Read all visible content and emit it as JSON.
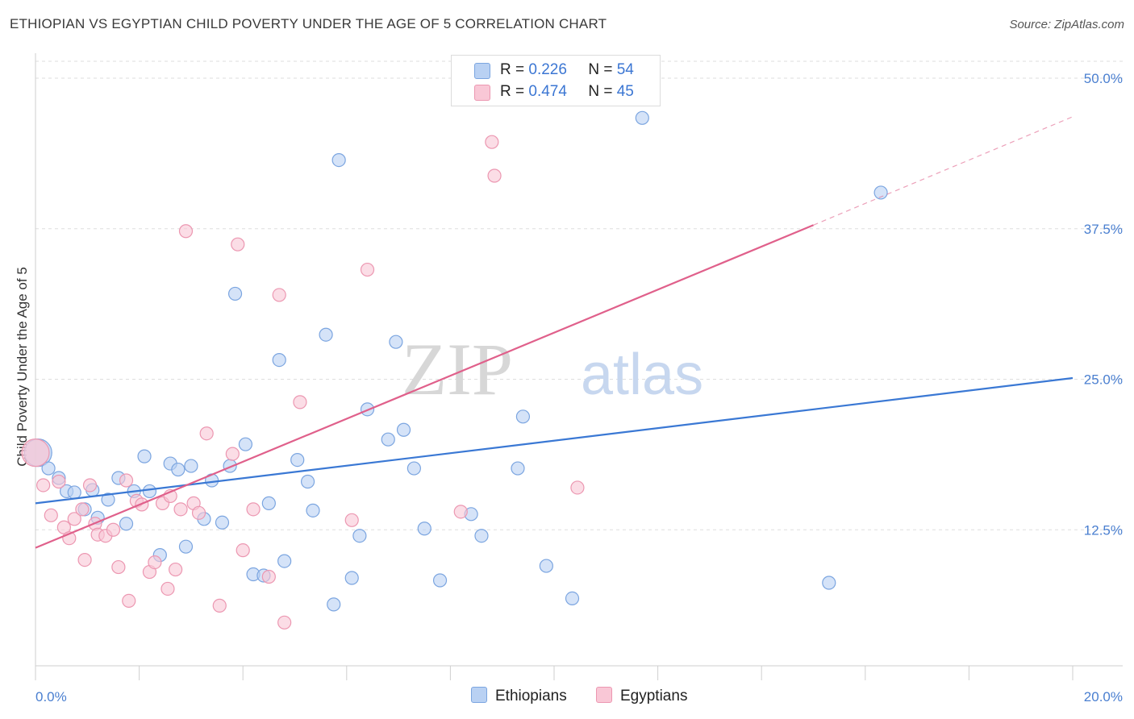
{
  "title": "ETHIOPIAN VS EGYPTIAN CHILD POVERTY UNDER THE AGE OF 5 CORRELATION CHART",
  "source": "Source: ZipAtlas.com",
  "watermark": {
    "zip": "ZIP",
    "atlas": "atlas"
  },
  "legend": {
    "r_label": "R =",
    "n_label": "N =",
    "rows": [
      {
        "r": "0.226",
        "n": "54",
        "fill": "#b9d1f3",
        "stroke": "#7ba5e0"
      },
      {
        "r": "0.474",
        "n": "45",
        "fill": "#f9c7d6",
        "stroke": "#ec97b1"
      }
    ]
  },
  "chart_data": {
    "type": "scatter",
    "title": "ETHIOPIAN VS EGYPTIAN CHILD POVERTY UNDER THE AGE OF 5 CORRELATION CHART",
    "xlabel": "",
    "ylabel": "Child Poverty Under the Age of 5",
    "xlim": [
      0,
      20
    ],
    "ylim": [
      0,
      52
    ],
    "x_tick_labels": [
      "0.0%",
      "20.0%"
    ],
    "y_ticks": [
      12.5,
      25.0,
      37.5,
      50.0
    ],
    "y_tick_labels": [
      "12.5%",
      "25.0%",
      "37.5%",
      "50.0%"
    ],
    "grid": true,
    "legend_position": "top-center",
    "series": [
      {
        "name": "Ethiopians",
        "color": "#3a78d4",
        "fill": "#b9d1f3",
        "stroke": "#7ba5e0",
        "r": 0.226,
        "n": 54,
        "trend": {
          "x0": 0,
          "y0": 14.7,
          "x1": 20,
          "y1": 25.1
        },
        "points": [
          [
            0.05,
            18.9
          ],
          [
            0.25,
            17.6
          ],
          [
            0.45,
            16.8
          ],
          [
            0.6,
            15.7
          ],
          [
            0.75,
            15.6
          ],
          [
            0.95,
            14.2
          ],
          [
            1.1,
            15.8
          ],
          [
            1.2,
            13.5
          ],
          [
            1.4,
            15.0
          ],
          [
            1.6,
            16.8
          ],
          [
            1.75,
            13.0
          ],
          [
            1.9,
            15.7
          ],
          [
            2.1,
            18.6
          ],
          [
            2.2,
            15.7
          ],
          [
            2.4,
            10.4
          ],
          [
            2.6,
            18.0
          ],
          [
            2.75,
            17.5
          ],
          [
            2.9,
            11.1
          ],
          [
            3.0,
            17.8
          ],
          [
            3.25,
            13.4
          ],
          [
            3.4,
            16.6
          ],
          [
            3.6,
            13.1
          ],
          [
            3.75,
            17.8
          ],
          [
            3.85,
            32.1
          ],
          [
            4.05,
            19.6
          ],
          [
            4.2,
            8.8
          ],
          [
            4.4,
            8.7
          ],
          [
            4.5,
            14.7
          ],
          [
            4.7,
            26.6
          ],
          [
            4.8,
            9.9
          ],
          [
            5.05,
            18.3
          ],
          [
            5.25,
            16.5
          ],
          [
            5.35,
            14.1
          ],
          [
            5.6,
            28.7
          ],
          [
            5.75,
            6.3
          ],
          [
            5.85,
            43.2
          ],
          [
            6.1,
            8.5
          ],
          [
            6.25,
            12.0
          ],
          [
            6.4,
            22.5
          ],
          [
            6.8,
            20.0
          ],
          [
            6.95,
            28.1
          ],
          [
            7.1,
            20.8
          ],
          [
            7.3,
            17.6
          ],
          [
            7.5,
            12.6
          ],
          [
            7.8,
            8.3
          ],
          [
            8.4,
            13.8
          ],
          [
            8.6,
            12.0
          ],
          [
            9.3,
            17.6
          ],
          [
            9.4,
            21.9
          ],
          [
            9.85,
            9.5
          ],
          [
            10.35,
            6.8
          ],
          [
            11.7,
            46.7
          ],
          [
            15.3,
            8.1
          ],
          [
            16.3,
            40.5
          ]
        ],
        "sizes": [
          40,
          24
        ]
      },
      {
        "name": "Egyptians",
        "color": "#e0608b",
        "fill": "#f9c7d6",
        "stroke": "#ec97b1",
        "r": 0.474,
        "n": 45,
        "trend": {
          "x0": 0,
          "y0": 11.0,
          "x1": 15,
          "y1": 37.8,
          "dash_to_x": 20,
          "dash_to_y": 46.8
        },
        "points": [
          [
            0.15,
            16.2
          ],
          [
            0.3,
            13.7
          ],
          [
            0.45,
            16.5
          ],
          [
            0.55,
            12.7
          ],
          [
            0.65,
            11.8
          ],
          [
            0.75,
            13.4
          ],
          [
            0.9,
            14.2
          ],
          [
            0.95,
            10.0
          ],
          [
            1.05,
            16.2
          ],
          [
            1.15,
            13.0
          ],
          [
            1.2,
            12.1
          ],
          [
            1.35,
            12.0
          ],
          [
            1.5,
            12.5
          ],
          [
            1.6,
            9.4
          ],
          [
            1.75,
            16.6
          ],
          [
            1.8,
            6.6
          ],
          [
            1.95,
            14.9
          ],
          [
            2.05,
            14.6
          ],
          [
            2.2,
            9.0
          ],
          [
            2.3,
            9.8
          ],
          [
            2.45,
            14.7
          ],
          [
            2.55,
            7.6
          ],
          [
            2.6,
            15.3
          ],
          [
            2.7,
            9.2
          ],
          [
            2.8,
            14.2
          ],
          [
            2.9,
            37.3
          ],
          [
            3.05,
            14.7
          ],
          [
            3.15,
            13.9
          ],
          [
            3.3,
            20.5
          ],
          [
            3.55,
            6.2
          ],
          [
            3.8,
            18.8
          ],
          [
            3.9,
            36.2
          ],
          [
            4.0,
            10.8
          ],
          [
            4.2,
            14.2
          ],
          [
            4.5,
            8.6
          ],
          [
            4.7,
            32.0
          ],
          [
            4.8,
            4.8
          ],
          [
            5.1,
            23.1
          ],
          [
            6.1,
            13.3
          ],
          [
            6.4,
            34.1
          ],
          [
            8.2,
            14.0
          ],
          [
            8.8,
            44.7
          ],
          [
            8.85,
            41.9
          ],
          [
            10.45,
            16.0
          ],
          [
            0.0,
            18.9
          ]
        ],
        "sizes": [
          40,
          24
        ]
      }
    ]
  },
  "series_labels": [
    "Ethiopians",
    "Egyptians"
  ]
}
